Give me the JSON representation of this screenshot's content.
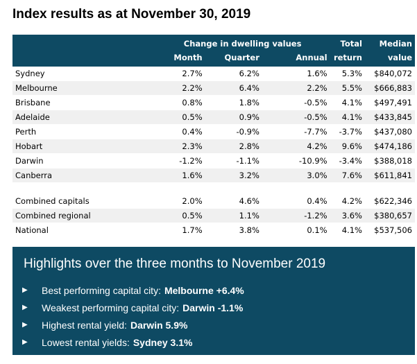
{
  "title": "Index results as at November 30, 2019",
  "table": {
    "group_header": "Change in dwelling values",
    "headers_top": [
      "",
      "",
      "Total",
      "Median"
    ],
    "headers": [
      "Month",
      "Quarter",
      "Annual",
      "return",
      "value"
    ],
    "rows": [
      {
        "name": "Sydney",
        "month": "2.7%",
        "quarter": "6.2%",
        "annual": "1.6%",
        "total": "5.3%",
        "median": "$840,072"
      },
      {
        "name": "Melbourne",
        "month": "2.2%",
        "quarter": "6.4%",
        "annual": "2.2%",
        "total": "5.5%",
        "median": "$666,883"
      },
      {
        "name": "Brisbane",
        "month": "0.8%",
        "quarter": "1.8%",
        "annual": "-0.5%",
        "total": "4.1%",
        "median": "$497,491"
      },
      {
        "name": "Adelaide",
        "month": "0.5%",
        "quarter": "0.9%",
        "annual": "-0.5%",
        "total": "4.1%",
        "median": "$433,845"
      },
      {
        "name": "Perth",
        "month": "0.4%",
        "quarter": "-0.9%",
        "annual": "-7.7%",
        "total": "-3.7%",
        "median": "$437,080"
      },
      {
        "name": "Hobart",
        "month": "2.3%",
        "quarter": "2.8%",
        "annual": "4.2%",
        "total": "9.6%",
        "median": "$474,186"
      },
      {
        "name": "Darwin",
        "month": "-1.2%",
        "quarter": "-1.1%",
        "annual": "-10.9%",
        "total": "-3.4%",
        "median": "$388,018"
      },
      {
        "name": "Canberra",
        "month": "1.6%",
        "quarter": "3.2%",
        "annual": "3.0%",
        "total": "7.6%",
        "median": "$611,841"
      }
    ],
    "summary_rows": [
      {
        "name": "Combined capitals",
        "month": "2.0%",
        "quarter": "4.6%",
        "annual": "0.4%",
        "total": "4.2%",
        "median": "$622,346"
      },
      {
        "name": "Combined regional",
        "month": "0.5%",
        "quarter": "1.1%",
        "annual": "-1.2%",
        "total": "3.6%",
        "median": "$380,657"
      },
      {
        "name": "National",
        "month": "1.7%",
        "quarter": "3.8%",
        "annual": "0.1%",
        "total": "4.1%",
        "median": "$537,506"
      }
    ]
  },
  "highlights": {
    "title": "Highlights over the three months to November 2019",
    "bullet_icon": "triangle-right-icon",
    "items": [
      {
        "label": "Best performing capital city:",
        "value": "Melbourne +6.4%"
      },
      {
        "label": "Weakest performing capital city:",
        "value": "Darwin -1.1%"
      },
      {
        "label": "Highest rental yield:",
        "value": "Darwin 5.9%"
      },
      {
        "label": "Lowest rental yields:",
        "value": "Sydney 3.1%"
      }
    ]
  },
  "colors": {
    "header_bg": "#0e4a63",
    "row_shade": "#f0f0f0"
  }
}
